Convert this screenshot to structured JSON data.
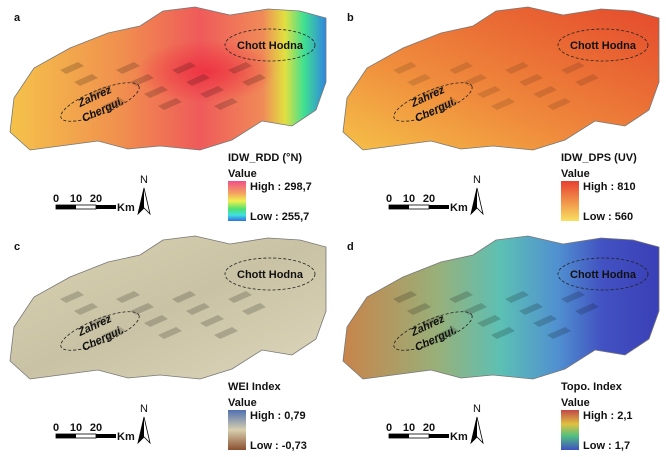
{
  "panels": [
    {
      "letter": "a",
      "place_1": "Chott Hodna",
      "place_2_line_1": "Zahrez",
      "place_2_line_2": "Chergui.",
      "legend": {
        "title": "IDW_RDD (°N)",
        "subtitle": "Value",
        "high": "High : 298,7",
        "low": "Low : 255,7"
      },
      "scale": {
        "ticks": [
          "0",
          "10",
          "20"
        ],
        "unit": "Km"
      },
      "north": "N"
    },
    {
      "letter": "b",
      "place_1": "Chott Hodna",
      "place_2_line_1": "Zahrez",
      "place_2_line_2": "Chergui.",
      "legend": {
        "title": "IDW_DPS (UV)",
        "subtitle": "Value",
        "high": "High : 810",
        "low": "Low : 560"
      },
      "scale": {
        "ticks": [
          "0",
          "10",
          "20"
        ],
        "unit": "Km"
      },
      "north": "N"
    },
    {
      "letter": "c",
      "place_1": "Chott Hodna",
      "place_2_line_1": "Zahrez",
      "place_2_line_2": "Chergui.",
      "legend": {
        "title": "WEI Index",
        "subtitle": "Value",
        "high": "High : 0,79",
        "low": "Low : -0,73"
      },
      "scale": {
        "ticks": [
          "0",
          "10",
          "20"
        ],
        "unit": "Km"
      },
      "north": "N"
    },
    {
      "letter": "d",
      "place_1": "Chott Hodna",
      "place_2_line_1": "Zahrez",
      "place_2_line_2": "Chergui.",
      "legend": {
        "title": "Topo. Index",
        "subtitle": "Value",
        "high": "High : 2,1",
        "low": "Low : 1,7"
      },
      "scale": {
        "ticks": [
          "0",
          "10",
          "20"
        ],
        "unit": "Km"
      },
      "north": "N"
    }
  ]
}
